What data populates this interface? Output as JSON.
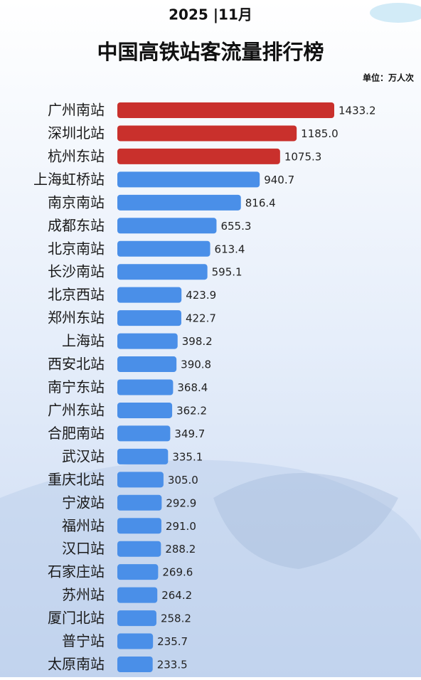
{
  "chart_data": {
    "type": "bar",
    "orientation": "horizontal",
    "subtitle": "2025 |11月",
    "title": "中国高铁站客流量排行榜",
    "unit": "单位：万人次",
    "categories": [
      "广州南站",
      "深圳北站",
      "杭州东站",
      "上海虹桥站",
      "南京南站",
      "成都东站",
      "北京南站",
      "长沙南站",
      "北京西站",
      "郑州东站",
      "上海站",
      "西安北站",
      "南宁东站",
      "广州东站",
      "合肥南站",
      "武汉站",
      "重庆北站",
      "宁波站",
      "福州站",
      "汉口站",
      "石家庄站",
      "苏州站",
      "厦门北站",
      "普宁站",
      "太原南站"
    ],
    "values": [
      1433.2,
      1185.0,
      1075.3,
      940.7,
      816.4,
      655.3,
      613.4,
      595.1,
      423.9,
      422.7,
      398.2,
      390.8,
      368.4,
      362.2,
      349.7,
      335.1,
      305.0,
      292.9,
      291.0,
      288.2,
      269.6,
      264.2,
      258.2,
      235.7,
      233.5
    ],
    "value_labels": [
      "1433.2",
      "1185.0",
      "1075.3",
      "940.7",
      "816.4",
      "655.3",
      "613.4",
      "595.1",
      "423.9",
      "422.7",
      "398.2",
      "390.8",
      "368.4",
      "362.2",
      "349.7",
      "335.1",
      "305.0",
      "292.9",
      "291.0",
      "288.2",
      "269.6",
      "264.2",
      "258.2",
      "235.7",
      "233.5"
    ],
    "colors": [
      "#c9302c",
      "#c9302c",
      "#c9302c",
      "#4a8fe8",
      "#4a8fe8",
      "#4a8fe8",
      "#4a8fe8",
      "#4a8fe8",
      "#4a8fe8",
      "#4a8fe8",
      "#4a8fe8",
      "#4a8fe8",
      "#4a8fe8",
      "#4a8fe8",
      "#4a8fe8",
      "#4a8fe8",
      "#4a8fe8",
      "#4a8fe8",
      "#4a8fe8",
      "#4a8fe8",
      "#4a8fe8",
      "#4a8fe8",
      "#4a8fe8",
      "#4a8fe8",
      "#4a8fe8"
    ]
  }
}
